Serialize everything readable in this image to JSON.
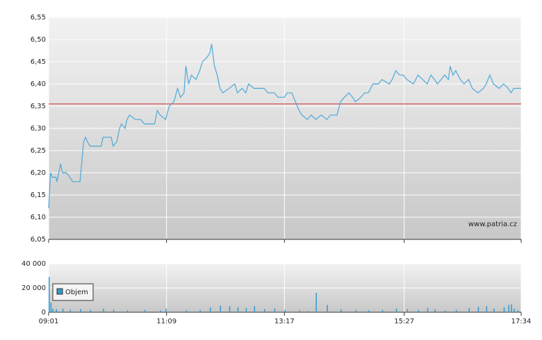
{
  "chart_data": [
    {
      "type": "line",
      "color": "#4aa8d8",
      "x": [
        541,
        543,
        545,
        549,
        550,
        552,
        554,
        556,
        560,
        564,
        567,
        575,
        579,
        581,
        583,
        586,
        598,
        600,
        609,
        611,
        615,
        618,
        620,
        624,
        626,
        629,
        635,
        641,
        645,
        656,
        659,
        662,
        668,
        672,
        677,
        681,
        684,
        688,
        690,
        693,
        696,
        701,
        705,
        708,
        713,
        716,
        718,
        721,
        724,
        727,
        730,
        737,
        743,
        746,
        751,
        755,
        758,
        764,
        775,
        779,
        786,
        790,
        797,
        800,
        805,
        809,
        813,
        816,
        822,
        826,
        831,
        837,
        843,
        847,
        854,
        858,
        862,
        867,
        871,
        874,
        880,
        884,
        888,
        893,
        899,
        903,
        911,
        914,
        918,
        922,
        926,
        930,
        937,
        942,
        947,
        952,
        956,
        960,
        963,
        971,
        975,
        977,
        980,
        983,
        988,
        992,
        997,
        1001,
        1007,
        1013,
        1016,
        1020,
        1024,
        1030,
        1035,
        1040,
        1043,
        1046,
        1054
      ],
      "values": [
        6.12,
        6.2,
        6.19,
        6.19,
        6.18,
        6.2,
        6.22,
        6.2,
        6.2,
        6.19,
        6.18,
        6.18,
        6.27,
        6.28,
        6.27,
        6.26,
        6.26,
        6.28,
        6.28,
        6.26,
        6.27,
        6.3,
        6.31,
        6.3,
        6.32,
        6.33,
        6.32,
        6.32,
        6.31,
        6.31,
        6.34,
        6.33,
        6.32,
        6.35,
        6.36,
        6.39,
        6.37,
        6.38,
        6.44,
        6.4,
        6.42,
        6.41,
        6.43,
        6.45,
        6.46,
        6.47,
        6.49,
        6.44,
        6.42,
        6.39,
        6.38,
        6.39,
        6.4,
        6.38,
        6.39,
        6.38,
        6.4,
        6.39,
        6.39,
        6.38,
        6.38,
        6.37,
        6.37,
        6.38,
        6.38,
        6.36,
        6.34,
        6.33,
        6.32,
        6.33,
        6.32,
        6.33,
        6.32,
        6.33,
        6.33,
        6.36,
        6.37,
        6.38,
        6.37,
        6.36,
        6.37,
        6.38,
        6.38,
        6.4,
        6.4,
        6.41,
        6.4,
        6.41,
        6.43,
        6.42,
        6.42,
        6.41,
        6.4,
        6.42,
        6.41,
        6.4,
        6.42,
        6.41,
        6.4,
        6.42,
        6.41,
        6.44,
        6.42,
        6.43,
        6.41,
        6.4,
        6.41,
        6.39,
        6.38,
        6.39,
        6.4,
        6.42,
        6.4,
        6.39,
        6.4,
        6.39,
        6.38,
        6.39,
        6.39
      ],
      "reference_line": {
        "value": 6.355,
        "color": "#d04040"
      },
      "watermark": "www.patria.cz",
      "xlim": [
        541,
        1054
      ],
      "ylim": [
        6.05,
        6.55
      ],
      "yticks": [
        {
          "value": 6.05,
          "label": "6,05"
        },
        {
          "value": 6.1,
          "label": "6,10"
        },
        {
          "value": 6.15,
          "label": "6,15"
        },
        {
          "value": 6.2,
          "label": "6,20"
        },
        {
          "value": 6.25,
          "label": "6,25"
        },
        {
          "value": 6.3,
          "label": "6,30"
        },
        {
          "value": 6.35,
          "label": "6,35"
        },
        {
          "value": 6.4,
          "label": "6,40"
        },
        {
          "value": 6.45,
          "label": "6,45"
        },
        {
          "value": 6.5,
          "label": "6,50"
        },
        {
          "value": 6.55,
          "label": "6,55"
        }
      ],
      "xticks": [
        541,
        669,
        797,
        927,
        1054
      ],
      "grid": true
    },
    {
      "type": "bar",
      "series": [
        {
          "name": "Objem",
          "color": "#3399cc",
          "x": [
            541,
            543,
            545,
            549,
            556,
            564,
            575,
            586,
            600,
            611,
            626,
            645,
            662,
            668,
            690,
            705,
            716,
            727,
            737,
            746,
            755,
            764,
            775,
            786,
            797,
            813,
            822,
            831,
            843,
            858,
            874,
            888,
            903,
            918,
            930,
            942,
            952,
            960,
            971,
            983,
            997,
            1007,
            1016,
            1024,
            1035,
            1040,
            1043,
            1046,
            1050
          ],
          "values": [
            29000,
            8000,
            3000,
            2500,
            3000,
            2000,
            2500,
            2000,
            3000,
            2000,
            1500,
            2000,
            1500,
            3000,
            1500,
            2000,
            4000,
            5500,
            5000,
            4000,
            3500,
            5000,
            2500,
            3000,
            2000,
            1500,
            1000,
            16000,
            6000,
            2500,
            2000,
            1500,
            2000,
            3000,
            2500,
            2000,
            3500,
            2500,
            1500,
            2000,
            3500,
            4500,
            5000,
            3000,
            4000,
            6000,
            6500,
            3000,
            1500
          ]
        }
      ],
      "xlim": [
        541,
        1054
      ],
      "ylim": [
        0,
        40000
      ],
      "yticks": [
        0,
        {
          "value": 20000,
          "label": "20 000"
        },
        {
          "value": 40000,
          "label": "40 000"
        }
      ],
      "xticks": [
        {
          "value": 541,
          "label": "09:01"
        },
        {
          "value": 669,
          "label": "11:09"
        },
        {
          "value": 797,
          "label": "13:17"
        },
        {
          "value": 927,
          "label": "15:27"
        },
        {
          "value": 1054,
          "label": "17:34"
        }
      ],
      "grid": true
    }
  ]
}
